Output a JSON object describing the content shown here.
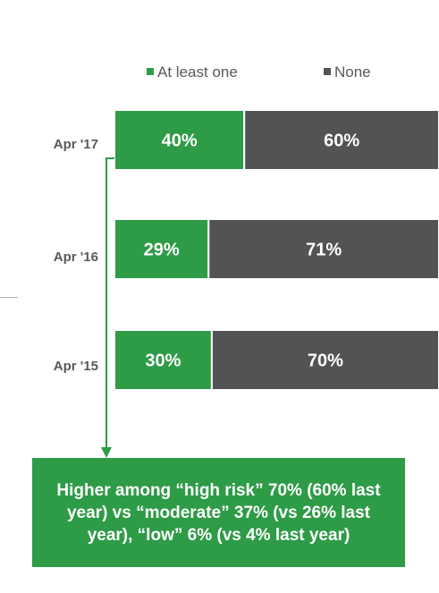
{
  "colors": {
    "at_least_one": "#2e9b47",
    "none": "#535353",
    "callout_bg": "#2e9b47",
    "arrow": "#2e9b47"
  },
  "legend": {
    "at_least_one": "At least one",
    "none": "None"
  },
  "callout": {
    "text": "Higher among “high risk” 70% (60% last year) vs “moderate” 37% (vs 26% last year), “low” 6% (vs 4% last year)"
  },
  "chart_data": {
    "type": "bar",
    "orientation": "horizontal",
    "stacked": true,
    "percent_stacked": true,
    "categories": [
      "Apr '17",
      "Apr '16",
      "Apr '15"
    ],
    "series": [
      {
        "name": "At least one",
        "values": [
          40,
          29,
          30
        ],
        "labels": [
          "40%",
          "29%",
          "30%"
        ]
      },
      {
        "name": "None",
        "values": [
          60,
          71,
          70
        ],
        "labels": [
          "60%",
          "71%",
          "70%"
        ]
      }
    ],
    "xlim": [
      0,
      100
    ],
    "legend_position": "top",
    "grid": false
  }
}
